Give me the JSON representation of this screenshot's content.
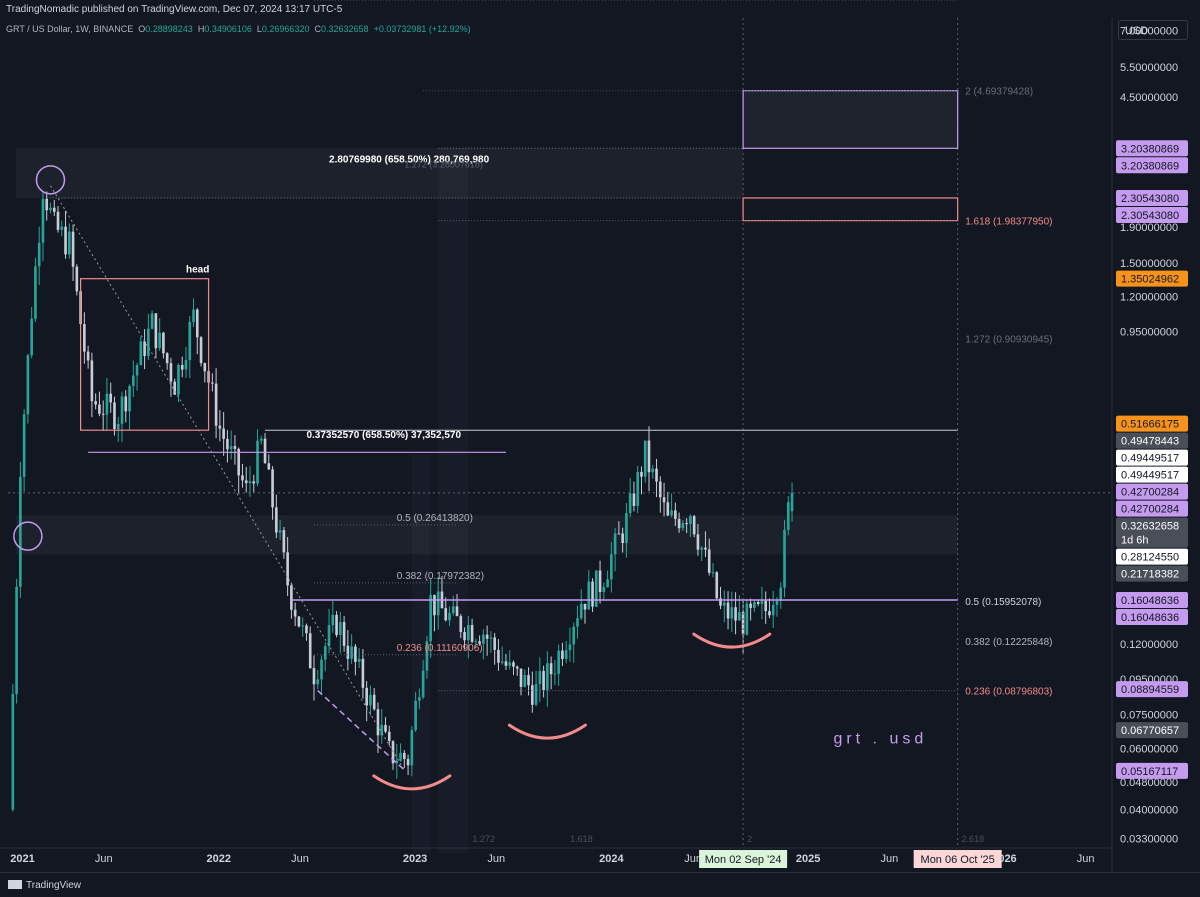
{
  "header": {
    "published": "TradingNomadic published on TradingView.com, Dec 07, 2024 13:17 UTC-5",
    "symbol": "GRT / US Dollar, 1W, BINANCE",
    "o_label": "O",
    "o_value": "0.28898243",
    "h_label": "H",
    "h_value": "0.34906106",
    "l_label": "L",
    "l_value": "0.26966320",
    "c_label": "C",
    "c_value": "0.32632658",
    "change": "+0.03732981 (+12.92%)",
    "currency": "USD"
  },
  "footer": {
    "brand": "TradingView"
  },
  "colors": {
    "background": "#131722",
    "up": "#26a69a",
    "down": "#c8ccd6",
    "purple": "#c59bf0",
    "pink": "#f28b8b",
    "orange": "#f7931a"
  },
  "chart_data": {
    "type": "candlestick",
    "series_symbol": "GRT / US Dollar",
    "timeframe": "1W",
    "y_scale": "log",
    "ylim": [
      0.031,
      7.6
    ],
    "xlim": [
      "2020-12-05",
      "2026-07-20"
    ],
    "y_ticks": [
      "7.00000000",
      "5.50000000",
      "4.50000000",
      "2.90000000",
      "1.90000000",
      "1.50000000",
      "1.20000000",
      "0.95000000",
      "0.38000000",
      "0.24000000",
      "0.19000000",
      "0.12000000",
      "0.09500000",
      "0.07500000",
      "0.06000000",
      "0.04800000",
      "0.04000000",
      "0.03300000"
    ],
    "x_ticks": [
      {
        "label": "2021",
        "date": "2021-01-01"
      },
      {
        "label": "Jun",
        "date": "2021-06-01"
      },
      {
        "label": "2022",
        "date": "2022-01-01"
      },
      {
        "label": "Jun",
        "date": "2022-06-01"
      },
      {
        "label": "2023",
        "date": "2023-01-01"
      },
      {
        "label": "Jun",
        "date": "2023-06-01"
      },
      {
        "label": "2024",
        "date": "2024-01-01"
      },
      {
        "label": "Jun",
        "date": "2024-06-01"
      },
      {
        "label": "2025",
        "date": "2025-01-01"
      },
      {
        "label": "Jun",
        "date": "2025-06-01"
      },
      {
        "label": "2026",
        "date": "2026-01-01"
      },
      {
        "label": "Jun",
        "date": "2026-06-01"
      }
    ],
    "date_badges": [
      {
        "label": "Mon 02 Sep '24",
        "date": "2024-09-02",
        "color": "#daf5d9"
      },
      {
        "label": "Mon 06 Oct '25",
        "date": "2025-10-06",
        "color": "#fbd7d7"
      }
    ],
    "price_badges": [
      {
        "label": "3.20380869",
        "value": 3.2038,
        "kind": "purple"
      },
      {
        "label": "3.20380869",
        "value": 3.2038,
        "kind": "purple"
      },
      {
        "label": "2.30543080",
        "value": 2.3054,
        "kind": "purple"
      },
      {
        "label": "2.30543080",
        "value": 2.3054,
        "kind": "purple"
      },
      {
        "label": "1.35024962",
        "value": 1.3502,
        "kind": "orange"
      },
      {
        "label": "0.51666175",
        "value": 0.5167,
        "kind": "orange"
      },
      {
        "label": "0.49478443",
        "value": 0.4948,
        "kind": "grey"
      },
      {
        "label": "0.49449517",
        "value": 0.4945,
        "kind": "white"
      },
      {
        "label": "0.49449517",
        "value": 0.4945,
        "kind": "white"
      },
      {
        "label": "0.42700284",
        "value": 0.427,
        "kind": "purple"
      },
      {
        "label": "0.42700284",
        "value": 0.427,
        "kind": "purple"
      },
      {
        "label": "0.32632658",
        "sub": "1d 6h",
        "value": 0.3263,
        "kind": "grey"
      },
      {
        "label": "0.28124550",
        "value": 0.2812,
        "kind": "white"
      },
      {
        "label": "0.21718382",
        "value": 0.2172,
        "kind": "grey"
      },
      {
        "label": "0.16048636",
        "value": 0.1605,
        "kind": "purple"
      },
      {
        "label": "0.16048636",
        "value": 0.1605,
        "kind": "purple"
      },
      {
        "label": "0.08894559",
        "value": 0.0889,
        "kind": "purple"
      },
      {
        "label": "0.06770657",
        "value": 0.0677,
        "kind": "grey"
      },
      {
        "label": "0.05167117",
        "value": 0.0517,
        "kind": "purple"
      }
    ],
    "annotations": {
      "measure_top": "2.80769980 (658.50%) 280,769,980",
      "measure_top_ghost": "1.272 (3.28007618)",
      "measure_mid": "0.37352570 (658.50%) 37,352,570",
      "head": "head",
      "watermark": "grt . usd",
      "fib_left": [
        {
          "label": "0.5 (0.26413820)",
          "value": 0.2641,
          "color": "#b2b5be"
        },
        {
          "label": "0.382 (0.17972382)",
          "value": 0.1797,
          "color": "#b2b5be"
        },
        {
          "label": "0.236 (0.11160906)",
          "value": 0.1116,
          "color": "#f28b8b"
        }
      ],
      "fib_right": [
        {
          "label": "2 (4.69379428)",
          "value": 4.6938,
          "color": "#6a6e78"
        },
        {
          "label": "1.618 (1.98377950)",
          "value": 1.9838,
          "color": "#f28b8b"
        },
        {
          "label": "1.272 (0.90930945)",
          "value": 0.9093,
          "color": "#6a6e78"
        },
        {
          "label": "0.5 (0.15952078)",
          "value": 0.1595,
          "color": "#d1d4dc"
        },
        {
          "label": "0.382 (0.12225848)",
          "value": 0.1223,
          "color": "#b2b5be"
        },
        {
          "label": "0.236 (0.08796803)",
          "value": 0.088,
          "color": "#f28b8b"
        }
      ],
      "fib_bottom": [
        {
          "label": "1.272",
          "date": "2023-04-10"
        },
        {
          "label": "1.618",
          "date": "2023-10-09"
        },
        {
          "label": "2",
          "date": "2024-09-02"
        },
        {
          "label": "2.618",
          "date": "2025-10-06"
        }
      ]
    },
    "anchors": [
      {
        "date": "2020-12-14",
        "value": 0.04
      },
      {
        "date": "2021-01-04",
        "value": 0.4
      },
      {
        "date": "2021-01-25",
        "value": 1.1
      },
      {
        "date": "2021-02-15",
        "value": 2.5
      },
      {
        "date": "2021-03-08",
        "value": 1.9
      },
      {
        "date": "2021-04-05",
        "value": 1.7
      },
      {
        "date": "2021-05-17",
        "value": 0.6
      },
      {
        "date": "2021-07-05",
        "value": 0.55
      },
      {
        "date": "2021-09-06",
        "value": 1.0
      },
      {
        "date": "2021-10-18",
        "value": 0.68
      },
      {
        "date": "2021-11-22",
        "value": 1.05
      },
      {
        "date": "2022-01-10",
        "value": 0.5
      },
      {
        "date": "2022-02-28",
        "value": 0.33
      },
      {
        "date": "2022-03-28",
        "value": 0.45
      },
      {
        "date": "2022-05-16",
        "value": 0.18
      },
      {
        "date": "2022-07-04",
        "value": 0.1
      },
      {
        "date": "2022-08-15",
        "value": 0.14
      },
      {
        "date": "2022-10-03",
        "value": 0.093
      },
      {
        "date": "2022-11-21",
        "value": 0.058
      },
      {
        "date": "2022-12-26",
        "value": 0.056
      },
      {
        "date": "2023-02-06",
        "value": 0.16
      },
      {
        "date": "2023-03-20",
        "value": 0.14
      },
      {
        "date": "2023-05-15",
        "value": 0.13
      },
      {
        "date": "2023-07-03",
        "value": 0.1
      },
      {
        "date": "2023-08-21",
        "value": 0.088
      },
      {
        "date": "2023-09-18",
        "value": 0.1
      },
      {
        "date": "2023-11-13",
        "value": 0.16
      },
      {
        "date": "2023-12-18",
        "value": 0.18
      },
      {
        "date": "2024-02-05",
        "value": 0.27
      },
      {
        "date": "2024-03-11",
        "value": 0.42
      },
      {
        "date": "2024-04-22",
        "value": 0.27
      },
      {
        "date": "2024-06-03",
        "value": 0.29
      },
      {
        "date": "2024-07-29",
        "value": 0.15
      },
      {
        "date": "2024-09-09",
        "value": 0.14
      },
      {
        "date": "2024-10-21",
        "value": 0.15
      },
      {
        "date": "2024-11-18",
        "value": 0.19
      },
      {
        "date": "2024-12-02",
        "value": 0.29
      }
    ],
    "last_candle": {
      "date": "2024-12-02",
      "o": 0.28898243,
      "h": 0.34906106,
      "l": 0.2696632,
      "c": 0.32632658
    }
  }
}
